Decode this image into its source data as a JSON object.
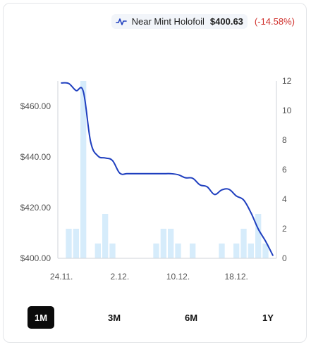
{
  "legend": {
    "series_name": "Near Mint Holofoil",
    "price": "$400.63",
    "change": "(-14.58%)",
    "icon": "line-chart-icon",
    "color": "#1f3fbf"
  },
  "range_buttons": [
    {
      "label": "1M",
      "active": true
    },
    {
      "label": "3M",
      "active": false
    },
    {
      "label": "6M",
      "active": false
    },
    {
      "label": "1Y",
      "active": false
    }
  ],
  "chart_data": {
    "type": "line+bar",
    "title": "",
    "x_tick_labels": [
      "24.11.",
      "2.12.",
      "10.12.",
      "18.12."
    ],
    "y_left": {
      "label": "",
      "range": [
        400,
        470
      ],
      "ticks": [
        "$400.00",
        "$420.00",
        "$440.00",
        "$460.00"
      ],
      "tick_values": [
        400,
        420,
        440,
        460
      ]
    },
    "y_right": {
      "label": "",
      "range": [
        0,
        12
      ],
      "ticks": [
        "0",
        "2",
        "4",
        "6",
        "8",
        "10",
        "12"
      ],
      "tick_values": [
        0,
        2,
        4,
        6,
        8,
        10,
        12
      ]
    },
    "grid": false,
    "legend_position": "top-right",
    "series": [
      {
        "name": "Near Mint Holofoil",
        "kind": "line",
        "axis": "left",
        "color": "#1f3fbf",
        "x": [
          "24.11.",
          "25.11.",
          "26.11.",
          "27.11.",
          "28.11.",
          "29.11.",
          "30.11.",
          "1.12.",
          "2.12.",
          "3.12.",
          "4.12.",
          "5.12.",
          "6.12.",
          "7.12.",
          "8.12.",
          "9.12.",
          "10.12.",
          "11.12.",
          "12.12.",
          "13.12.",
          "14.12.",
          "15.12.",
          "16.12.",
          "17.12.",
          "18.12.",
          "19.12.",
          "20.12.",
          "21.12.",
          "22.12.",
          "23.12."
        ],
        "values": [
          469.2,
          469.0,
          466.2,
          465.8,
          446.0,
          440.4,
          439.6,
          438.6,
          433.6,
          433.4,
          433.4,
          433.4,
          433.4,
          433.4,
          433.4,
          433.4,
          433.0,
          431.8,
          431.6,
          429.0,
          428.2,
          425.2,
          427.0,
          427.2,
          424.6,
          423.0,
          418.0,
          411.6,
          406.8,
          401.2
        ]
      },
      {
        "name": "",
        "kind": "bar",
        "axis": "right",
        "color": "#d6ecfb",
        "x": [
          "24.11.",
          "25.11.",
          "26.11.",
          "27.11.",
          "28.11.",
          "29.11.",
          "30.11.",
          "1.12.",
          "2.12.",
          "3.12.",
          "4.12.",
          "5.12.",
          "6.12.",
          "7.12.",
          "8.12.",
          "9.12.",
          "10.12.",
          "11.12.",
          "12.12.",
          "13.12.",
          "14.12.",
          "15.12.",
          "16.12.",
          "17.12.",
          "18.12.",
          "19.12.",
          "20.12.",
          "21.12.",
          "22.12.",
          "23.12."
        ],
        "values": [
          0,
          2,
          2,
          12,
          0,
          1,
          3,
          1,
          0,
          0,
          0,
          0,
          0,
          1,
          2,
          2,
          1,
          0,
          1,
          0,
          0,
          0,
          1,
          0,
          1,
          2,
          1,
          3,
          1,
          0
        ]
      }
    ]
  }
}
